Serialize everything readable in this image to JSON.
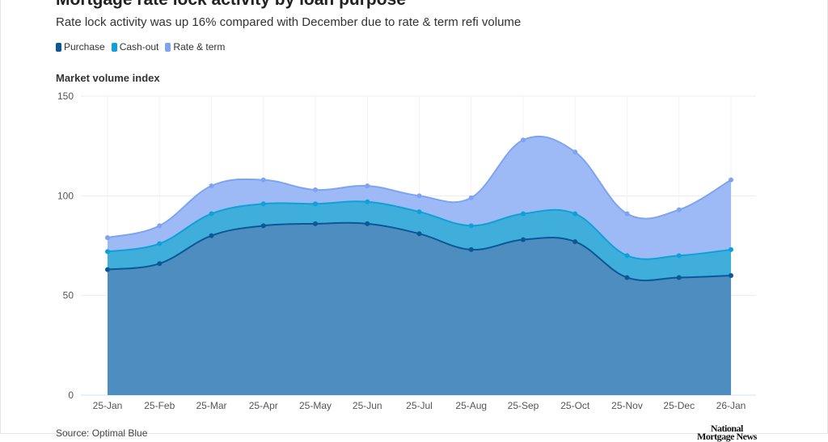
{
  "chart_data": {
    "type": "area",
    "stacked": true,
    "title": "Mortgage rate lock activity by loan purpose",
    "subtitle": "Rate lock activity was up 16% compared with December due to rate & term refi volume",
    "ylabel": "Market volume index",
    "ylim": [
      0,
      150
    ],
    "yticks": [
      0,
      50,
      100,
      150
    ],
    "grid": true,
    "legend_position": "top-left",
    "categories": [
      "25-Jan",
      "25-Feb",
      "25-Mar",
      "25-Apr",
      "25-May",
      "25-Jun",
      "25-Jul",
      "25-Aug",
      "25-Sep",
      "25-Oct",
      "25-Nov",
      "25-Dec",
      "26-Jan"
    ],
    "series": [
      {
        "name": "Purchase",
        "color": "#0b5896",
        "fill": "#4d8dbf",
        "values": [
          63,
          66,
          80,
          85,
          86,
          86,
          81,
          73,
          78,
          77,
          59,
          59,
          60
        ]
      },
      {
        "name": "Cash-out",
        "color": "#0ea1d7",
        "fill": "#40aedb",
        "values": [
          9,
          10,
          11,
          11,
          10,
          11,
          11,
          12,
          13,
          14,
          11,
          11,
          13
        ]
      },
      {
        "name": "Rate & term",
        "color": "#7ea3f0",
        "fill": "#9dbaf6",
        "values": [
          7,
          9,
          14,
          12,
          7,
          8,
          8,
          14,
          37,
          31,
          21,
          23,
          35
        ]
      }
    ],
    "source": "Source: Optimal Blue",
    "logo": "National Mortgage News"
  }
}
